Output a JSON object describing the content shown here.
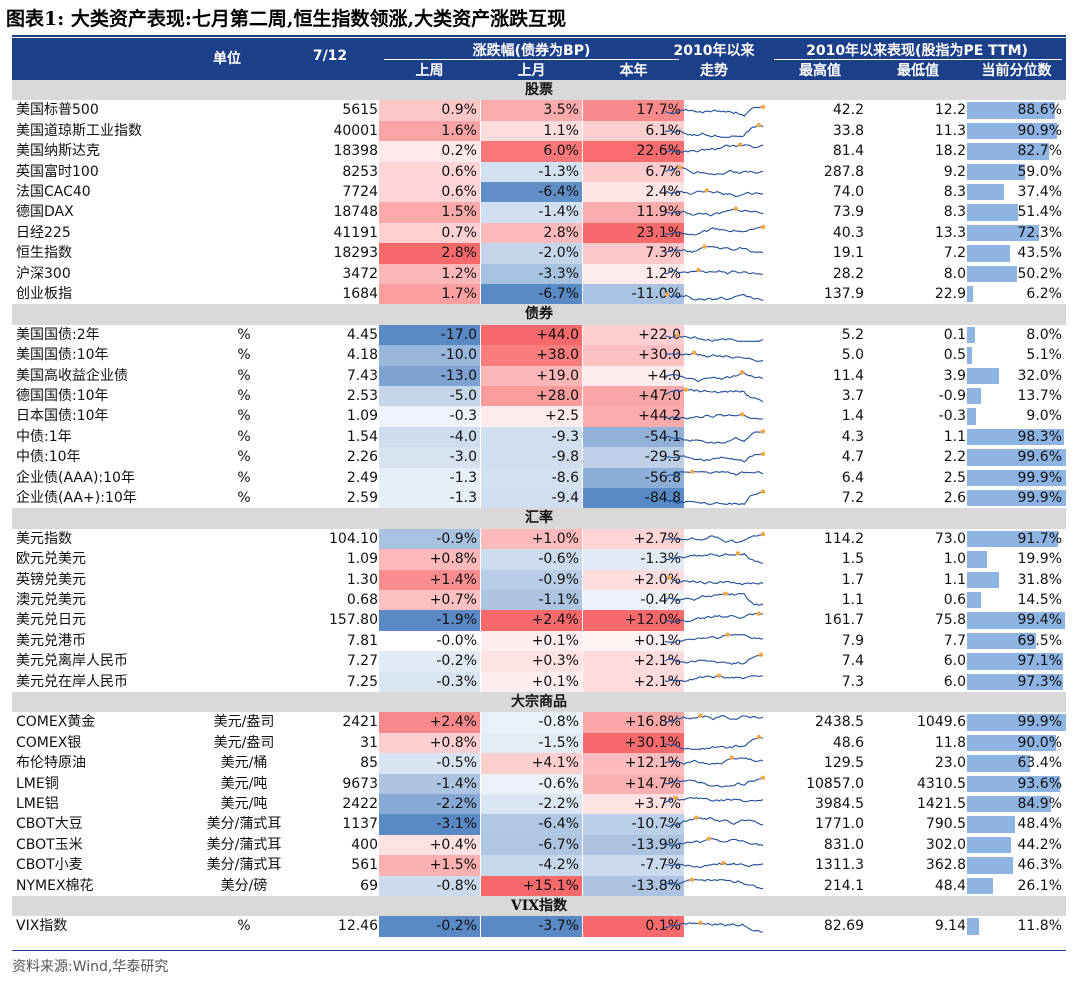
{
  "title": "图表1:  大类资产表现:七月第二周,恒生指数领涨,大类资产涨跌互现",
  "header": {
    "unit": "单位",
    "date": "7/12",
    "change_group": "涨跌幅(债券为BP)",
    "col_week": "上周",
    "col_month": "上月",
    "col_year": "本年",
    "trend_group": "2010年以来",
    "trend_sub": "走势",
    "perf_group": "2010年以来表现(股指为PE TTM)",
    "col_high": "最高值",
    "col_low": "最低值",
    "col_pct": "当前分位数"
  },
  "colors": {
    "header_bg": "#1c3f8a",
    "section_bg": "#d9d9d9",
    "positive": "#f8696b",
    "negative": "#5a8ac6",
    "bar": "#8eb4e3",
    "spark_line": "#1f4e99",
    "spark_dot": "#f4a742"
  },
  "sections": [
    {
      "title": "股票",
      "rows": [
        {
          "name": "美国标普500",
          "unit": "",
          "value": "5615",
          "week": "0.9%",
          "month": "3.5%",
          "year": "17.7%",
          "w": 0.9,
          "m": 3.5,
          "y": 17.7,
          "high": "42.2",
          "low": "12.2",
          "pct": "88.6%",
          "p": 88.6
        },
        {
          "name": "美国道琼斯工业指数",
          "unit": "",
          "value": "40001",
          "week": "1.6%",
          "month": "1.1%",
          "year": "6.1%",
          "w": 1.6,
          "m": 1.1,
          "y": 6.1,
          "high": "33.8",
          "low": "11.3",
          "pct": "90.9%",
          "p": 90.9
        },
        {
          "name": "美国纳斯达克",
          "unit": "",
          "value": "18398",
          "week": "0.2%",
          "month": "6.0%",
          "year": "22.6%",
          "w": 0.2,
          "m": 6.0,
          "y": 22.6,
          "high": "81.4",
          "low": "18.2",
          "pct": "82.7%",
          "p": 82.7
        },
        {
          "name": "英国富时100",
          "unit": "",
          "value": "8253",
          "week": "0.6%",
          "month": "-1.3%",
          "year": "6.7%",
          "w": 0.6,
          "m": -1.3,
          "y": 6.7,
          "high": "287.8",
          "low": "9.2",
          "pct": "59.0%",
          "p": 59.0
        },
        {
          "name": "法国CAC40",
          "unit": "",
          "value": "7724",
          "week": "0.6%",
          "month": "-6.4%",
          "year": "2.4%",
          "w": 0.6,
          "m": -6.4,
          "y": 2.4,
          "high": "74.0",
          "low": "8.3",
          "pct": "37.4%",
          "p": 37.4
        },
        {
          "name": "德国DAX",
          "unit": "",
          "value": "18748",
          "week": "1.5%",
          "month": "-1.4%",
          "year": "11.9%",
          "w": 1.5,
          "m": -1.4,
          "y": 11.9,
          "high": "73.9",
          "low": "8.3",
          "pct": "51.4%",
          "p": 51.4
        },
        {
          "name": "日经225",
          "unit": "",
          "value": "41191",
          "week": "0.7%",
          "month": "2.8%",
          "year": "23.1%",
          "w": 0.7,
          "m": 2.8,
          "y": 23.1,
          "high": "40.3",
          "low": "13.3",
          "pct": "72.3%",
          "p": 72.3
        },
        {
          "name": "恒生指数",
          "unit": "",
          "value": "18293",
          "week": "2.8%",
          "month": "-2.0%",
          "year": "7.3%",
          "w": 2.8,
          "m": -2.0,
          "y": 7.3,
          "high": "19.1",
          "low": "7.2",
          "pct": "43.5%",
          "p": 43.5
        },
        {
          "name": "沪深300",
          "unit": "",
          "value": "3472",
          "week": "1.2%",
          "month": "-3.3%",
          "year": "1.2%",
          "w": 1.2,
          "m": -3.3,
          "y": 1.2,
          "high": "28.2",
          "low": "8.0",
          "pct": "50.2%",
          "p": 50.2
        },
        {
          "name": "创业板指",
          "unit": "",
          "value": "1684",
          "week": "1.7%",
          "month": "-6.7%",
          "year": "-11.0%",
          "w": 1.7,
          "m": -6.7,
          "y": -11.0,
          "high": "137.9",
          "low": "22.9",
          "pct": "6.2%",
          "p": 6.2
        }
      ]
    },
    {
      "title": "债券",
      "rows": [
        {
          "name": "美国国债:2年",
          "unit": "%",
          "value": "4.45",
          "week": "-17.0",
          "month": "+44.0",
          "year": "+22.0",
          "w": -17,
          "m": 44,
          "y": 22,
          "high": "5.2",
          "low": "0.1",
          "pct": "8.0%",
          "p": 8.0
        },
        {
          "name": "美国国债:10年",
          "unit": "%",
          "value": "4.18",
          "week": "-10.0",
          "month": "+38.0",
          "year": "+30.0",
          "w": -10,
          "m": 38,
          "y": 30,
          "high": "5.0",
          "low": "0.5",
          "pct": "5.1%",
          "p": 5.1
        },
        {
          "name": "美国高收益企业债",
          "unit": "%",
          "value": "7.43",
          "week": "-13.0",
          "month": "+19.0",
          "year": "+4.0",
          "w": -13,
          "m": 19,
          "y": 4,
          "high": "11.4",
          "low": "3.9",
          "pct": "32.0%",
          "p": 32.0
        },
        {
          "name": "德国国债:10年",
          "unit": "%",
          "value": "2.53",
          "week": "-5.0",
          "month": "+28.0",
          "year": "+47.0",
          "w": -5,
          "m": 28,
          "y": 47,
          "high": "3.7",
          "low": "-0.9",
          "pct": "13.7%",
          "p": 13.7
        },
        {
          "name": "日本国债:10年",
          "unit": "%",
          "value": "1.09",
          "week": "-0.3",
          "month": "+2.5",
          "year": "+44.2",
          "w": -0.3,
          "m": 2.5,
          "y": 44.2,
          "high": "1.4",
          "low": "-0.3",
          "pct": "9.0%",
          "p": 9.0
        },
        {
          "name": "中债:1年",
          "unit": "%",
          "value": "1.54",
          "week": "-4.0",
          "month": "-9.3",
          "year": "-54.1",
          "w": -4,
          "m": -9.3,
          "y": -54.1,
          "high": "4.3",
          "low": "1.1",
          "pct": "98.3%",
          "p": 98.3
        },
        {
          "name": "中债:10年",
          "unit": "%",
          "value": "2.26",
          "week": "-3.0",
          "month": "-9.8",
          "year": "-29.5",
          "w": -3,
          "m": -9.8,
          "y": -29.5,
          "high": "4.7",
          "low": "2.2",
          "pct": "99.6%",
          "p": 99.6
        },
        {
          "name": "企业债(AAA):10年",
          "unit": "%",
          "value": "2.49",
          "week": "-1.3",
          "month": "-8.6",
          "year": "-56.8",
          "w": -1.3,
          "m": -8.6,
          "y": -56.8,
          "high": "6.4",
          "low": "2.5",
          "pct": "99.9%",
          "p": 99.9
        },
        {
          "name": "企业债(AA+):10年",
          "unit": "%",
          "value": "2.59",
          "week": "-1.3",
          "month": "-9.4",
          "year": "-84.8",
          "w": -1.3,
          "m": -9.4,
          "y": -84.8,
          "high": "7.2",
          "low": "2.6",
          "pct": "99.9%",
          "p": 99.9
        }
      ]
    },
    {
      "title": "汇率",
      "rows": [
        {
          "name": "美元指数",
          "unit": "",
          "value": "104.10",
          "week": "-0.9%",
          "month": "+1.0%",
          "year": "+2.7%",
          "w": -0.9,
          "m": 1.0,
          "y": 2.7,
          "high": "114.2",
          "low": "73.0",
          "pct": "91.7%",
          "p": 91.7
        },
        {
          "name": "欧元兑美元",
          "unit": "",
          "value": "1.09",
          "week": "+0.8%",
          "month": "-0.6%",
          "year": "-1.3%",
          "w": 0.8,
          "m": -0.6,
          "y": -1.3,
          "high": "1.5",
          "low": "1.0",
          "pct": "19.9%",
          "p": 19.9
        },
        {
          "name": "英镑兑美元",
          "unit": "",
          "value": "1.30",
          "week": "+1.4%",
          "month": "-0.9%",
          "year": "+2.0%",
          "w": 1.4,
          "m": -0.9,
          "y": 2.0,
          "high": "1.7",
          "low": "1.1",
          "pct": "31.8%",
          "p": 31.8
        },
        {
          "name": "澳元兑美元",
          "unit": "",
          "value": "0.68",
          "week": "+0.7%",
          "month": "-1.1%",
          "year": "-0.4%",
          "w": 0.7,
          "m": -1.1,
          "y": -0.4,
          "high": "1.1",
          "low": "0.6",
          "pct": "14.5%",
          "p": 14.5
        },
        {
          "name": "美元兑日元",
          "unit": "",
          "value": "157.80",
          "week": "-1.9%",
          "month": "+2.4%",
          "year": "+12.0%",
          "w": -1.9,
          "m": 2.4,
          "y": 12.0,
          "high": "161.7",
          "low": "75.8",
          "pct": "99.4%",
          "p": 99.4
        },
        {
          "name": "美元兑港币",
          "unit": "",
          "value": "7.81",
          "week": "-0.0%",
          "month": "+0.1%",
          "year": "+0.1%",
          "w": -0.0,
          "m": 0.1,
          "y": 0.1,
          "high": "7.9",
          "low": "7.7",
          "pct": "69.5%",
          "p": 69.5
        },
        {
          "name": "美元兑离岸人民币",
          "unit": "",
          "value": "7.27",
          "week": "-0.2%",
          "month": "+0.3%",
          "year": "+2.1%",
          "w": -0.2,
          "m": 0.3,
          "y": 2.1,
          "high": "7.4",
          "low": "6.0",
          "pct": "97.1%",
          "p": 97.1
        },
        {
          "name": "美元兑在岸人民币",
          "unit": "",
          "value": "7.25",
          "week": "-0.3%",
          "month": "+0.1%",
          "year": "+2.1%",
          "w": -0.3,
          "m": 0.1,
          "y": 2.1,
          "high": "7.3",
          "low": "6.0",
          "pct": "97.3%",
          "p": 97.3
        }
      ]
    },
    {
      "title": "大宗商品",
      "rows": [
        {
          "name": "COMEX黄金",
          "unit": "美元/盎司",
          "value": "2421",
          "week": "+2.4%",
          "month": "-0.8%",
          "year": "+16.8%",
          "w": 2.4,
          "m": -0.8,
          "y": 16.8,
          "high": "2438.5",
          "low": "1049.6",
          "pct": "99.9%",
          "p": 99.9
        },
        {
          "name": "COMEX银",
          "unit": "美元/盎司",
          "value": "31",
          "week": "+0.8%",
          "month": "-1.5%",
          "year": "+30.1%",
          "w": 0.8,
          "m": -1.5,
          "y": 30.1,
          "high": "48.6",
          "low": "11.8",
          "pct": "90.0%",
          "p": 90.0
        },
        {
          "name": "布伦特原油",
          "unit": "美元/桶",
          "value": "85",
          "week": "-0.5%",
          "month": "+4.1%",
          "year": "+12.1%",
          "w": -0.5,
          "m": 4.1,
          "y": 12.1,
          "high": "129.5",
          "low": "23.0",
          "pct": "63.4%",
          "p": 63.4
        },
        {
          "name": "LME铜",
          "unit": "美元/吨",
          "value": "9673",
          "week": "-1.4%",
          "month": "-0.6%",
          "year": "+14.7%",
          "w": -1.4,
          "m": -0.6,
          "y": 14.7,
          "high": "10857.0",
          "low": "4310.5",
          "pct": "93.6%",
          "p": 93.6
        },
        {
          "name": "LME铝",
          "unit": "美元/吨",
          "value": "2422",
          "week": "-2.2%",
          "month": "-2.2%",
          "year": "+3.7%",
          "w": -2.2,
          "m": -2.2,
          "y": 3.7,
          "high": "3984.5",
          "low": "1421.5",
          "pct": "84.9%",
          "p": 84.9
        },
        {
          "name": "CBOT大豆",
          "unit": "美分/蒲式耳",
          "value": "1137",
          "week": "-3.1%",
          "month": "-6.4%",
          "year": "-10.7%",
          "w": -3.1,
          "m": -6.4,
          "y": -10.7,
          "high": "1771.0",
          "low": "790.5",
          "pct": "48.4%",
          "p": 48.4
        },
        {
          "name": "CBOT玉米",
          "unit": "美分/蒲式耳",
          "value": "400",
          "week": "+0.4%",
          "month": "-6.7%",
          "year": "-13.9%",
          "w": 0.4,
          "m": -6.7,
          "y": -13.9,
          "high": "831.0",
          "low": "302.0",
          "pct": "44.2%",
          "p": 44.2
        },
        {
          "name": "CBOT小麦",
          "unit": "美分/蒲式耳",
          "value": "561",
          "week": "+1.5%",
          "month": "-4.2%",
          "year": "-7.7%",
          "w": 1.5,
          "m": -4.2,
          "y": -7.7,
          "high": "1311.3",
          "low": "362.8",
          "pct": "46.3%",
          "p": 46.3
        },
        {
          "name": "NYMEX棉花",
          "unit": "美分/磅",
          "value": "69",
          "week": "-0.8%",
          "month": "+15.1%",
          "year": "-13.8%",
          "w": -0.8,
          "m": 15.1,
          "y": -13.8,
          "high": "214.1",
          "low": "48.4",
          "pct": "26.1%",
          "p": 26.1
        }
      ]
    },
    {
      "title": "VIX指数",
      "rows": [
        {
          "name": "VIX指数",
          "unit": "%",
          "value": "12.46",
          "week": "-0.2%",
          "month": "-3.7%",
          "year": "0.1%",
          "w": -0.2,
          "m": -3.7,
          "y": 0.1,
          "high": "82.69",
          "low": "9.14",
          "pct": "11.8%",
          "p": 11.8
        }
      ]
    }
  ],
  "source": "资料来源:Wind,华泰研究"
}
